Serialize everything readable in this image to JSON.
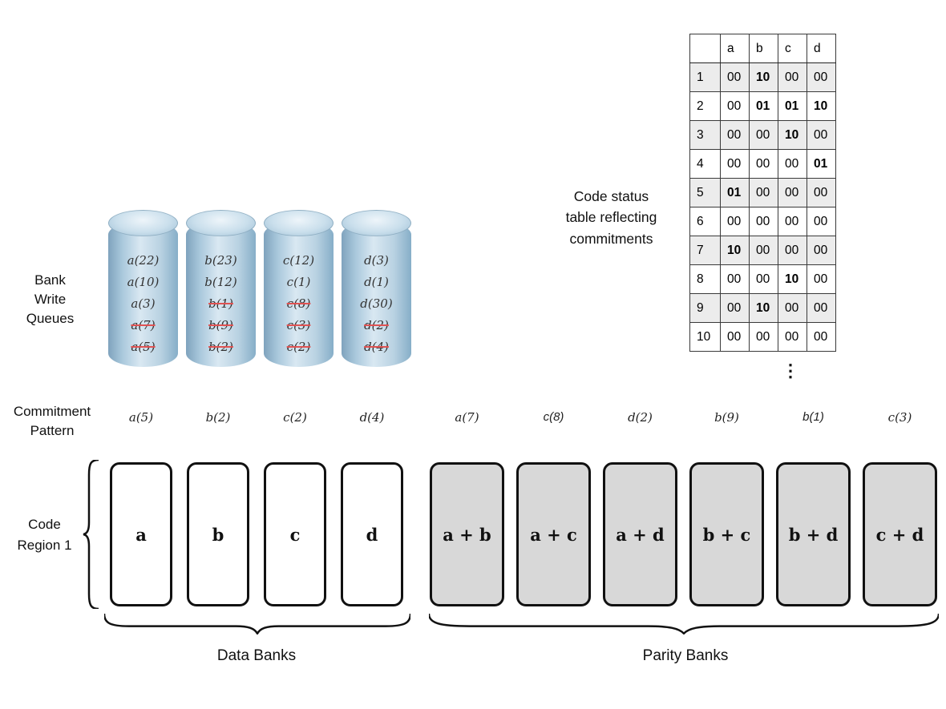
{
  "status_table": {
    "caption": "Code status\ntable reflecting\ncommitments",
    "columns": [
      "",
      "a",
      "b",
      "c",
      "d"
    ],
    "rows": [
      {
        "label": "1",
        "cells": [
          {
            "v": "00",
            "bold": false
          },
          {
            "v": "10",
            "bold": true
          },
          {
            "v": "00",
            "bold": false
          },
          {
            "v": "00",
            "bold": false
          }
        ]
      },
      {
        "label": "2",
        "cells": [
          {
            "v": "00",
            "bold": false
          },
          {
            "v": "01",
            "bold": true
          },
          {
            "v": "01",
            "bold": true
          },
          {
            "v": "10",
            "bold": true
          }
        ]
      },
      {
        "label": "3",
        "cells": [
          {
            "v": "00",
            "bold": false
          },
          {
            "v": "00",
            "bold": false
          },
          {
            "v": "10",
            "bold": true
          },
          {
            "v": "00",
            "bold": false
          }
        ]
      },
      {
        "label": "4",
        "cells": [
          {
            "v": "00",
            "bold": false
          },
          {
            "v": "00",
            "bold": false
          },
          {
            "v": "00",
            "bold": false
          },
          {
            "v": "01",
            "bold": true
          }
        ]
      },
      {
        "label": "5",
        "cells": [
          {
            "v": "01",
            "bold": true
          },
          {
            "v": "00",
            "bold": false
          },
          {
            "v": "00",
            "bold": false
          },
          {
            "v": "00",
            "bold": false
          }
        ]
      },
      {
        "label": "6",
        "cells": [
          {
            "v": "00",
            "bold": false
          },
          {
            "v": "00",
            "bold": false
          },
          {
            "v": "00",
            "bold": false
          },
          {
            "v": "00",
            "bold": false
          }
        ]
      },
      {
        "label": "7",
        "cells": [
          {
            "v": "10",
            "bold": true
          },
          {
            "v": "00",
            "bold": false
          },
          {
            "v": "00",
            "bold": false
          },
          {
            "v": "00",
            "bold": false
          }
        ]
      },
      {
        "label": "8",
        "cells": [
          {
            "v": "00",
            "bold": false
          },
          {
            "v": "00",
            "bold": false
          },
          {
            "v": "10",
            "bold": true
          },
          {
            "v": "00",
            "bold": false
          }
        ]
      },
      {
        "label": "9",
        "cells": [
          {
            "v": "00",
            "bold": false
          },
          {
            "v": "10",
            "bold": true
          },
          {
            "v": "00",
            "bold": false
          },
          {
            "v": "00",
            "bold": false
          }
        ]
      },
      {
        "label": "10",
        "cells": [
          {
            "v": "00",
            "bold": false
          },
          {
            "v": "00",
            "bold": false
          },
          {
            "v": "00",
            "bold": false
          },
          {
            "v": "00",
            "bold": false
          }
        ]
      }
    ],
    "ellipsis": "⋮"
  },
  "queues": {
    "label": "Bank\nWrite\nQueues",
    "cylinders": [
      {
        "name": "a",
        "entries": [
          {
            "t": "a(22)",
            "struck": false
          },
          {
            "t": "a(10)",
            "struck": false
          },
          {
            "t": "a(3)",
            "struck": false
          },
          {
            "t": "a(7)",
            "struck": true
          },
          {
            "t": "a(5)",
            "struck": true
          }
        ]
      },
      {
        "name": "b",
        "entries": [
          {
            "t": "b(23)",
            "struck": false
          },
          {
            "t": "b(12)",
            "struck": false
          },
          {
            "t": "b(1)",
            "struck": true
          },
          {
            "t": "b(9)",
            "struck": true
          },
          {
            "t": "b(2)",
            "struck": true
          }
        ]
      },
      {
        "name": "c",
        "entries": [
          {
            "t": "c(12)",
            "struck": false
          },
          {
            "t": "c(1)",
            "struck": false
          },
          {
            "t": "c(8)",
            "struck": true
          },
          {
            "t": "c(3)",
            "struck": true
          },
          {
            "t": "c(2)",
            "struck": true
          }
        ]
      },
      {
        "name": "d",
        "entries": [
          {
            "t": "d(3)",
            "struck": false
          },
          {
            "t": "d(1)",
            "struck": false
          },
          {
            "t": "d(30)",
            "struck": false
          },
          {
            "t": "d(2)",
            "struck": true
          },
          {
            "t": "d(4)",
            "struck": true
          }
        ]
      }
    ]
  },
  "commitment_pattern": {
    "label": "Commitment\nPattern",
    "items": [
      {
        "t": "a(5)",
        "style": "serif"
      },
      {
        "t": "b(2)",
        "style": "serif"
      },
      {
        "t": "c(2)",
        "style": "serif"
      },
      {
        "t": "d(4)",
        "style": "serif"
      },
      {
        "t": "a(7)",
        "style": "serif"
      },
      {
        "t": "c(8)",
        "style": "sans"
      },
      {
        "t": "d(2)",
        "style": "serif"
      },
      {
        "t": "b(9)",
        "style": "serif"
      },
      {
        "t": "b(1)",
        "style": "sans"
      },
      {
        "t": "c(3)",
        "style": "serif"
      }
    ]
  },
  "code_region": {
    "label": "Code\nRegion 1",
    "data_banks": [
      "a",
      "b",
      "c",
      "d"
    ],
    "parity_banks": [
      "a + b",
      "a + c",
      "a + d",
      "b + c",
      "b + d",
      "c + d"
    ],
    "data_banks_label": "Data Banks",
    "parity_banks_label": "Parity Banks"
  },
  "colors": {
    "strike": "#e05252",
    "parity_bank_bg": "#d8d8d8",
    "table_row_alt_bg": "#ececec",
    "cylinder_blue": "#a9c8dc"
  }
}
